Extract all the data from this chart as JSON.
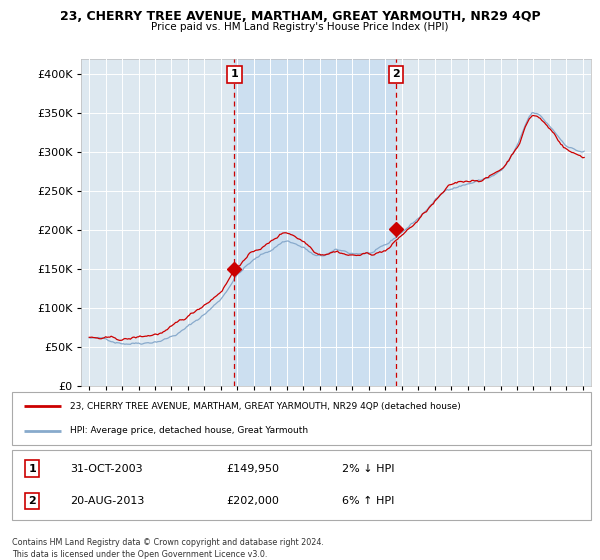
{
  "title": "23, CHERRY TREE AVENUE, MARTHAM, GREAT YARMOUTH, NR29 4QP",
  "subtitle": "Price paid vs. HM Land Registry's House Price Index (HPI)",
  "legend_line1": "23, CHERRY TREE AVENUE, MARTHAM, GREAT YARMOUTH, NR29 4QP (detached house)",
  "legend_line2": "HPI: Average price, detached house, Great Yarmouth",
  "footer": "Contains HM Land Registry data © Crown copyright and database right 2024.\nThis data is licensed under the Open Government Licence v3.0.",
  "sale1_date": "31-OCT-2003",
  "sale1_price": "£149,950",
  "sale1_hpi": "2% ↓ HPI",
  "sale2_date": "20-AUG-2013",
  "sale2_price": "£202,000",
  "sale2_hpi": "6% ↑ HPI",
  "plot_bg_color": "#dde8f0",
  "shade_color": "#ccdff0",
  "grid_color": "#ffffff",
  "red_color": "#cc0000",
  "blue_color": "#88aacc",
  "marker1_x": 2003.83,
  "marker1_y": 149950,
  "marker2_x": 2013.63,
  "marker2_y": 202000,
  "ylim": [
    0,
    420000
  ],
  "xlim": [
    1994.5,
    2025.5
  ]
}
